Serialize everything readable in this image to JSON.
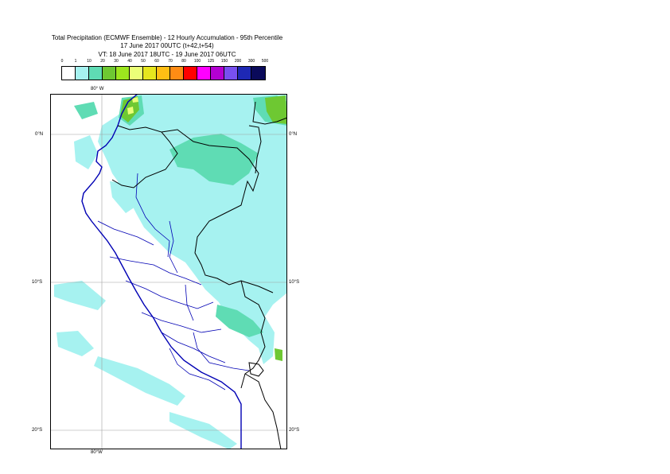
{
  "title": {
    "line1": "Total Precipitation (ECMWF Ensemble) - 12 Hourly Accumulation - 95th Percentile",
    "line2": "17 June 2017 00UTC (t+42,t+54)",
    "line3": "VT: 18 June 2017 18UTC - 19 June 2017 06UTC"
  },
  "legend": {
    "thresholds": [
      "0",
      "1",
      "10",
      "20",
      "30",
      "40",
      "50",
      "60",
      "70",
      "80",
      "100",
      "125",
      "150",
      "200",
      "300",
      "500"
    ],
    "colors": [
      "#ffffff",
      "#a6f2f0",
      "#5fdcb4",
      "#6ec832",
      "#9ce61e",
      "#ebff78",
      "#e6e61e",
      "#ffbe14",
      "#ff8c14",
      "#ff0000",
      "#ff00ff",
      "#b400d2",
      "#7850f0",
      "#1e28b4",
      "#0a0a5a"
    ]
  },
  "map": {
    "lon_labels": {
      "top": "80° W",
      "bottom": "80°W"
    },
    "lat_labels": [
      "0°N",
      "10°S",
      "20°S"
    ],
    "colors": {
      "ocean": "#ffffff",
      "light_precip": "#a6f2f0",
      "moderate_precip": "#5fdcb4",
      "heavy_precip": "#6ec832",
      "very_heavy_precip": "#ebff78",
      "border": "#000000",
      "region_border": "#0000b4",
      "grid": "#a0a0a0"
    }
  }
}
